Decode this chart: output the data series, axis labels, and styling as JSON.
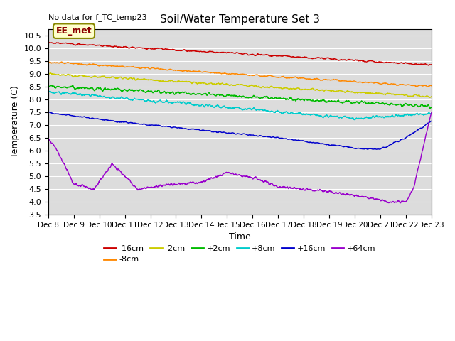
{
  "title": "Soil/Water Temperature Set 3",
  "xlabel": "Time",
  "ylabel": "Temperature (C)",
  "note": "No data for f_TC_temp23",
  "annotation": "EE_met",
  "ylim": [
    3.5,
    10.75
  ],
  "background_color": "#dcdcdc",
  "colors": {
    "-16cm": "#cc0000",
    "-8cm": "#ff8800",
    "-2cm": "#cccc00",
    "+2cm": "#00bb00",
    "+8cm": "#00cccc",
    "+16cm": "#0000cc",
    "+64cm": "#9900cc"
  },
  "xtick_labels": [
    "Dec 8",
    "Dec 9",
    "Dec 10",
    "Dec 11",
    "Dec 12",
    "Dec 13",
    "Dec 14",
    "Dec 15",
    "Dec 16",
    "Dec 17",
    "Dec 18",
    "Dec 19",
    "Dec 20",
    "Dec 21",
    "Dec 22",
    "Dec 23"
  ]
}
